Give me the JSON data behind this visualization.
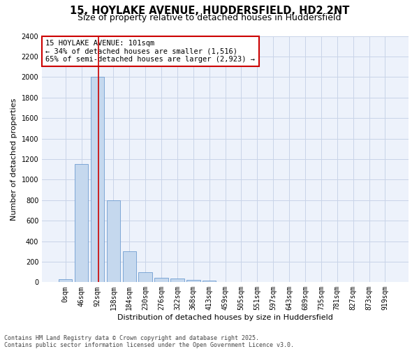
{
  "title_line1": "15, HOYLAKE AVENUE, HUDDERSFIELD, HD2 2NT",
  "title_line2": "Size of property relative to detached houses in Huddersfield",
  "xlabel": "Distribution of detached houses by size in Huddersfield",
  "ylabel": "Number of detached properties",
  "bar_color": "#c5d8ee",
  "bar_edge_color": "#5b8fc9",
  "grid_color": "#c8d4e8",
  "bg_color": "#edf2fb",
  "categories": [
    "0sqm",
    "46sqm",
    "92sqm",
    "138sqm",
    "184sqm",
    "230sqm",
    "276sqm",
    "322sqm",
    "368sqm",
    "413sqm",
    "459sqm",
    "505sqm",
    "551sqm",
    "597sqm",
    "643sqm",
    "689sqm",
    "735sqm",
    "781sqm",
    "827sqm",
    "873sqm",
    "919sqm"
  ],
  "values": [
    30,
    1150,
    2000,
    800,
    300,
    100,
    45,
    35,
    20,
    15,
    5,
    2,
    0,
    0,
    0,
    0,
    0,
    0,
    0,
    0,
    0
  ],
  "ylim": [
    0,
    2400
  ],
  "yticks": [
    0,
    200,
    400,
    600,
    800,
    1000,
    1200,
    1400,
    1600,
    1800,
    2000,
    2200,
    2400
  ],
  "property_label": "15 HOYLAKE AVENUE: 101sqm",
  "smaller_pct": 34,
  "smaller_count": 1516,
  "larger_pct": 65,
  "larger_count": 2923,
  "vline_x": 2.075,
  "annotation_box_color": "#cc0000",
  "footer_line1": "Contains HM Land Registry data © Crown copyright and database right 2025.",
  "footer_line2": "Contains public sector information licensed under the Open Government Licence v3.0.",
  "title_fontsize": 10.5,
  "subtitle_fontsize": 9,
  "axis_label_fontsize": 8,
  "tick_fontsize": 7,
  "annotation_fontsize": 7.5,
  "footer_fontsize": 6
}
